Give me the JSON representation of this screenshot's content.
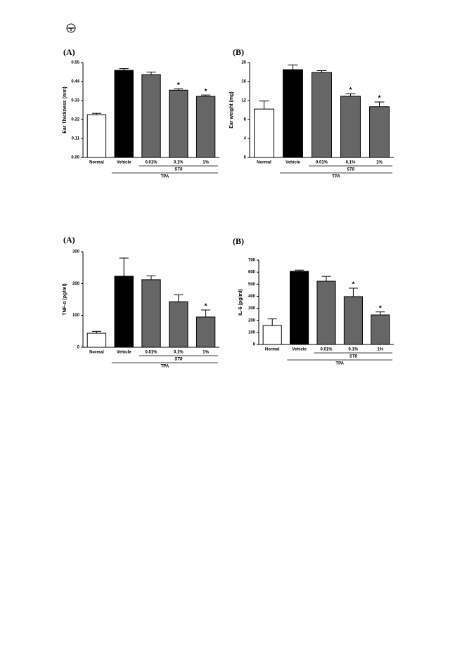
{
  "chart_data": [
    {
      "type": "bar",
      "panel": "(A)",
      "ylabel": "Ear Thickness (mm)",
      "categories": [
        "Normal",
        "Vehicle",
        "0.01%",
        "0.1%",
        "1%"
      ],
      "values": [
        0.248,
        0.505,
        0.48,
        0.39,
        0.354
      ],
      "errors": [
        0.008,
        0.01,
        0.015,
        0.008,
        0.008
      ],
      "colors": [
        "#ffffff",
        "#000000",
        "#666666",
        "#666666",
        "#666666"
      ],
      "significance": [
        null,
        null,
        null,
        "*",
        "*"
      ],
      "subgroup": "ST8",
      "group": "TPA",
      "ylim": [
        0,
        0.55
      ],
      "yticks": [
        {
          "value": 0,
          "label": "0.00"
        },
        {
          "value": 0.11,
          "label": "0.11"
        },
        {
          "value": 0.22,
          "label": "0.22"
        },
        {
          "value": 0.33,
          "label": "0.33"
        },
        {
          "value": 0.44,
          "label": "0.44"
        },
        {
          "value": 0.55,
          "label": "0.55"
        }
      ]
    },
    {
      "type": "bar",
      "panel": "(B)",
      "ylabel": "Ear weight (mg)",
      "categories": [
        "Normal",
        "Vehicle",
        "0.01%",
        "0.1%",
        "1%"
      ],
      "values": [
        10.2,
        18.5,
        17.9,
        12.9,
        10.7
      ],
      "errors": [
        1.7,
        1.0,
        0.4,
        0.5,
        1.0
      ],
      "colors": [
        "#ffffff",
        "#000000",
        "#666666",
        "#666666",
        "#666666"
      ],
      "significance": [
        null,
        null,
        null,
        "*",
        "*"
      ],
      "subgroup": "ST8",
      "group": "TPA",
      "ylim": [
        0,
        20
      ],
      "yticks": [
        0,
        4,
        8,
        12,
        16,
        20
      ]
    },
    {
      "type": "bar",
      "panel": "(A)",
      "ylabel": "TNF-α (pg/ml)",
      "categories": [
        "Normal",
        "Vehicle",
        "0.01%",
        "0.1%",
        "1%"
      ],
      "values": [
        44,
        223,
        212,
        143,
        95
      ],
      "errors": [
        6,
        57,
        12,
        22,
        22
      ],
      "colors": [
        "#ffffff",
        "#000000",
        "#666666",
        "#666666",
        "#666666"
      ],
      "significance": [
        null,
        null,
        null,
        null,
        "*"
      ],
      "subgroup": "ST8",
      "group": "TPA",
      "ylim": [
        0,
        300
      ],
      "yticks": [
        0,
        100,
        200,
        300
      ]
    },
    {
      "type": "bar",
      "panel": "(B)",
      "ylabel": "IL-6 (pg/ml)",
      "categories": [
        "Normal",
        "Vehicle",
        "0.01%",
        "0.1%",
        "1%"
      ],
      "values": [
        157,
        607,
        525,
        397,
        245
      ],
      "errors": [
        55,
        10,
        40,
        70,
        25
      ],
      "colors": [
        "#ffffff",
        "#000000",
        "#666666",
        "#666666",
        "#666666"
      ],
      "significance": [
        null,
        null,
        null,
        "*",
        "*"
      ],
      "subgroup": "ST8",
      "group": "TPA",
      "ylim": [
        0,
        700
      ],
      "yticks": [
        0,
        100,
        200,
        300,
        400,
        500,
        600,
        700
      ]
    }
  ]
}
